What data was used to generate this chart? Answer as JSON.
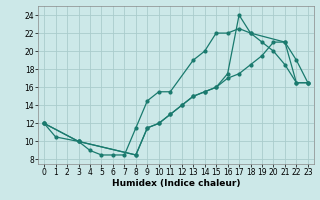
{
  "background_color": "#cce8e8",
  "grid_color": "#aacccc",
  "line_color": "#1a7a6e",
  "xlabel": "Humidex (Indice chaleur)",
  "xlim": [
    -0.5,
    23.5
  ],
  "ylim": [
    7.5,
    25
  ],
  "xticks": [
    0,
    1,
    2,
    3,
    4,
    5,
    6,
    7,
    8,
    9,
    10,
    11,
    12,
    13,
    14,
    15,
    16,
    17,
    18,
    19,
    20,
    21,
    22,
    23
  ],
  "yticks": [
    8,
    10,
    12,
    14,
    16,
    18,
    20,
    22,
    24
  ],
  "line1": {
    "x": [
      0,
      1,
      3,
      4,
      5,
      6,
      7,
      8,
      9,
      10,
      11,
      13,
      14,
      15,
      16,
      17,
      18,
      21,
      22,
      23
    ],
    "y": [
      12,
      10.5,
      10,
      9,
      8.5,
      8.5,
      8.5,
      11.5,
      14.5,
      15.5,
      15.5,
      19,
      20,
      22,
      22,
      22.5,
      22,
      21,
      16.5,
      16.5
    ]
  },
  "line2": {
    "x": [
      0,
      3,
      8,
      9,
      10,
      11,
      12,
      13,
      14,
      15,
      16,
      17,
      18,
      19,
      20,
      21,
      22,
      23
    ],
    "y": [
      12,
      10,
      8.5,
      11.5,
      12,
      13,
      14,
      15,
      15.5,
      16,
      17,
      17.5,
      18.5,
      19.5,
      21,
      21,
      19,
      16.5
    ]
  },
  "line3": {
    "x": [
      0,
      3,
      8,
      9,
      10,
      11,
      12,
      13,
      14,
      15,
      16,
      17,
      18,
      19,
      20,
      21,
      22,
      23
    ],
    "y": [
      12,
      10,
      8.5,
      11.5,
      12,
      13,
      14,
      15,
      15.5,
      16,
      17.5,
      24,
      22,
      21,
      20,
      18.5,
      16.5,
      16.5
    ]
  }
}
